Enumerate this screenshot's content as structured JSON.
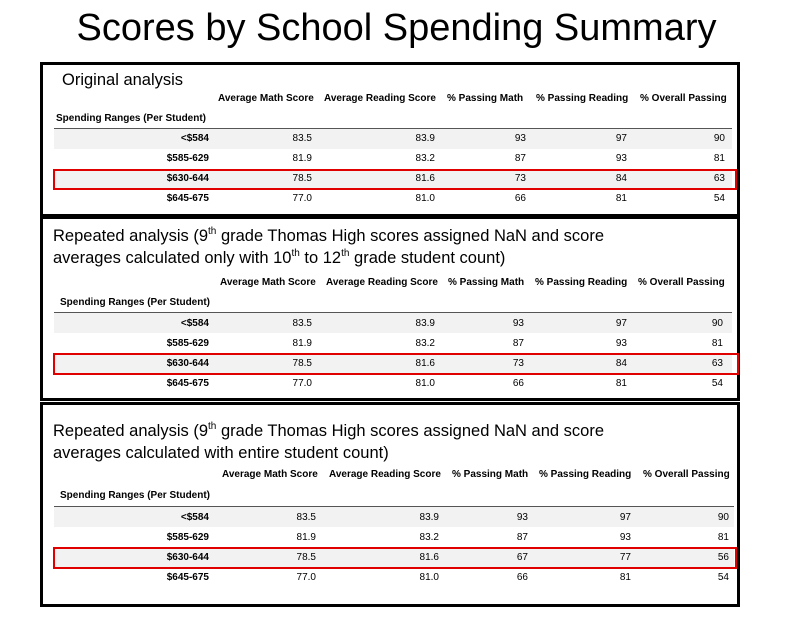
{
  "page_title": "Scores by School Spending Summary",
  "panels": [
    {
      "caption_line1": "Original analysis",
      "columns": [
        "Average Math Score",
        "Average Reading Score",
        "% Passing Math",
        "% Passing Reading",
        "% Overall Passing"
      ],
      "index_label": "Spending Ranges (Per Student)",
      "rows": [
        {
          "label": "<$584",
          "values": [
            "83.5",
            "83.9",
            "93",
            "97",
            "90"
          ]
        },
        {
          "label": "$585-629",
          "values": [
            "81.9",
            "83.2",
            "87",
            "93",
            "81"
          ]
        },
        {
          "label": "$630-644",
          "values": [
            "78.5",
            "81.6",
            "73",
            "84",
            "63"
          ],
          "highlighted": true
        },
        {
          "label": "$645-675",
          "values": [
            "77.0",
            "81.0",
            "66",
            "81",
            "54"
          ]
        }
      ]
    },
    {
      "caption_line1_a": "Repeated analysis (9",
      "caption_line1_sup": "th",
      "caption_line1_b": " grade Thomas High scores assigned NaN and score",
      "caption_line2_a": "averages calculated only with 10",
      "caption_line2_sup1": "th",
      "caption_line2_b": " to 12",
      "caption_line2_sup2": "th",
      "caption_line2_c": " grade student count)",
      "columns": [
        "Average Math Score",
        "Average Reading Score",
        "% Passing Math",
        "% Passing Reading",
        "% Overall Passing"
      ],
      "index_label": "Spending Ranges (Per Student)",
      "rows": [
        {
          "label": "<$584",
          "values": [
            "83.5",
            "83.9",
            "93",
            "97",
            "90"
          ]
        },
        {
          "label": "$585-629",
          "values": [
            "81.9",
            "83.2",
            "87",
            "93",
            "81"
          ]
        },
        {
          "label": "$630-644",
          "values": [
            "78.5",
            "81.6",
            "73",
            "84",
            "63"
          ],
          "highlighted": true
        },
        {
          "label": "$645-675",
          "values": [
            "77.0",
            "81.0",
            "66",
            "81",
            "54"
          ]
        }
      ]
    },
    {
      "caption_line1_a": "Repeated analysis (9",
      "caption_line1_sup": "th",
      "caption_line1_b": " grade Thomas High scores assigned NaN and score",
      "caption_line2": "averages calculated with entire student count)",
      "columns": [
        "Average Math Score",
        "Average Reading Score",
        "% Passing Math",
        "% Passing Reading",
        "% Overall Passing"
      ],
      "index_label": "Spending Ranges (Per Student)",
      "rows": [
        {
          "label": "<$584",
          "values": [
            "83.5",
            "83.9",
            "93",
            "97",
            "90"
          ]
        },
        {
          "label": "$585-629",
          "values": [
            "81.9",
            "83.2",
            "87",
            "93",
            "81"
          ]
        },
        {
          "label": "$630-644",
          "values": [
            "78.5",
            "81.6",
            "67",
            "77",
            "56"
          ],
          "highlighted": true
        },
        {
          "label": "$645-675",
          "values": [
            "77.0",
            "81.0",
            "66",
            "81",
            "54"
          ]
        }
      ]
    }
  ]
}
